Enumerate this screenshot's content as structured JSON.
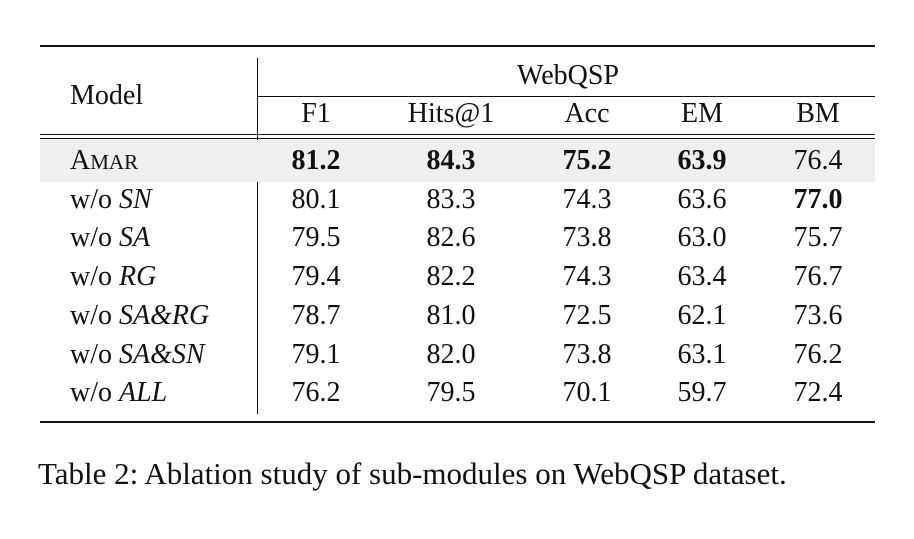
{
  "table": {
    "model_header": "Model",
    "group_header": "WebQSP",
    "columns": [
      "F1",
      "Hits@1",
      "Acc",
      "EM",
      "BM"
    ],
    "rows": [
      {
        "prefix": "",
        "cap": "A",
        "small": "MAR",
        "values": [
          "81.2",
          "84.3",
          "75.2",
          "63.9",
          "76.4"
        ],
        "bold": [
          true,
          true,
          true,
          true,
          false
        ],
        "highlight": true
      },
      {
        "prefix": "w/o ",
        "variant": "SN",
        "values": [
          "80.1",
          "83.3",
          "74.3",
          "63.6",
          "77.0"
        ],
        "bold": [
          false,
          false,
          false,
          false,
          true
        ]
      },
      {
        "prefix": "w/o ",
        "variant": "SA",
        "values": [
          "79.5",
          "82.6",
          "73.8",
          "63.0",
          "75.7"
        ],
        "bold": [
          false,
          false,
          false,
          false,
          false
        ]
      },
      {
        "prefix": "w/o ",
        "variant": "RG",
        "values": [
          "79.4",
          "82.2",
          "74.3",
          "63.4",
          "76.7"
        ],
        "bold": [
          false,
          false,
          false,
          false,
          false
        ]
      },
      {
        "prefix": "w/o ",
        "variant": "SA&RG",
        "values": [
          "78.7",
          "81.0",
          "72.5",
          "62.1",
          "73.6"
        ],
        "bold": [
          false,
          false,
          false,
          false,
          false
        ]
      },
      {
        "prefix": "w/o ",
        "variant": "SA&SN",
        "values": [
          "79.1",
          "82.0",
          "73.8",
          "63.1",
          "76.2"
        ],
        "bold": [
          false,
          false,
          false,
          false,
          false
        ]
      },
      {
        "prefix": "w/o ",
        "variant": "ALL",
        "values": [
          "76.2",
          "79.5",
          "70.1",
          "59.7",
          "72.4"
        ],
        "bold": [
          false,
          false,
          false,
          false,
          false
        ]
      }
    ]
  },
  "caption": "Table 2: Ablation study of sub-modules on WebQSP dataset.",
  "colors": {
    "highlight_row": "#efefef",
    "text": "#111111"
  }
}
